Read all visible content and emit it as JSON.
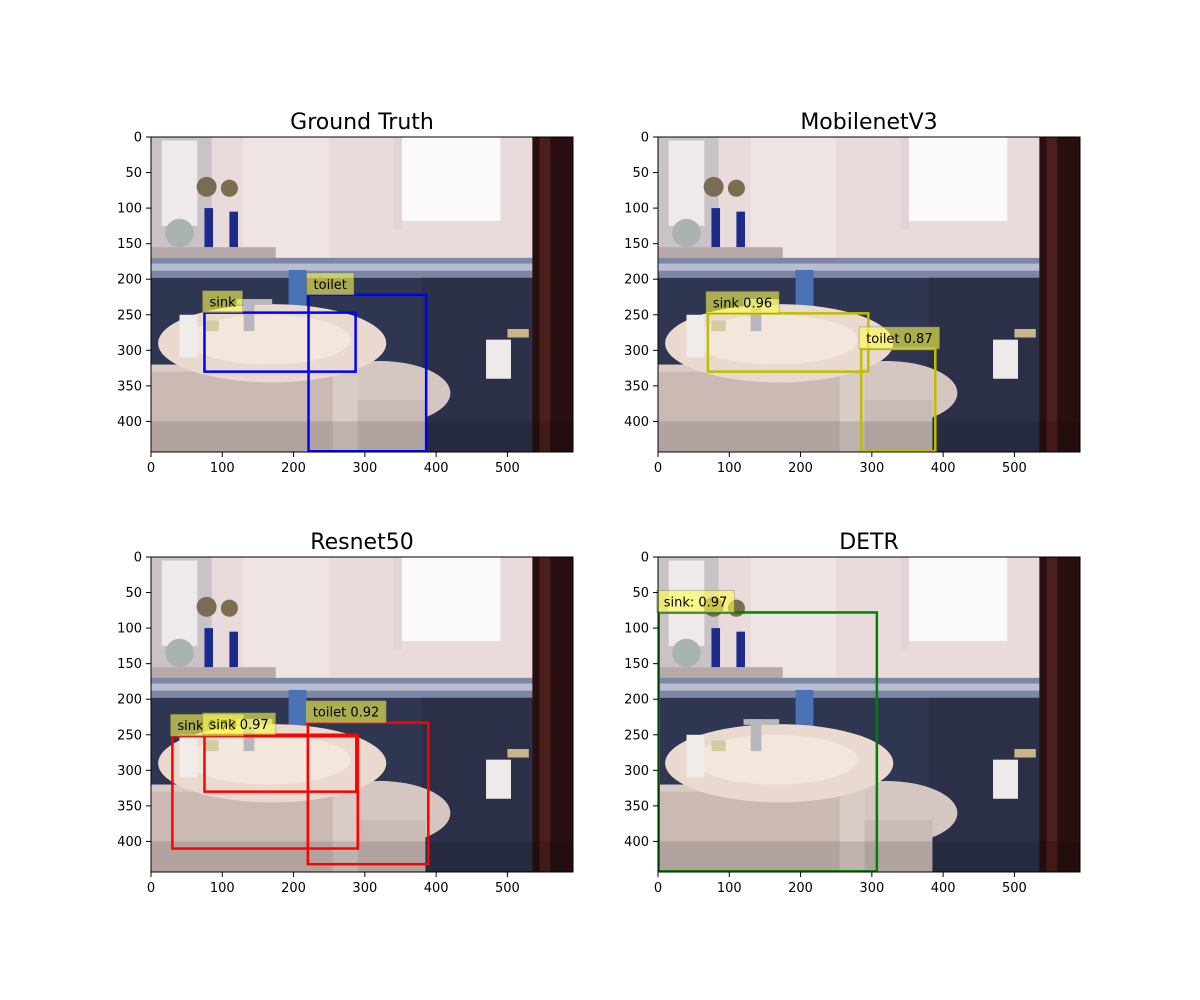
{
  "figure": {
    "image_extent": {
      "width": 592,
      "height": 443
    },
    "x_ticks": [
      0,
      100,
      200,
      300,
      400,
      500
    ],
    "y_ticks": [
      0,
      50,
      100,
      150,
      200,
      250,
      300,
      350,
      400
    ],
    "panels": [
      {
        "title": "Ground Truth",
        "box_color": "#0000ff",
        "boxes": [
          {
            "label": "sink",
            "x1": 75,
            "y1": 247,
            "x2": 287,
            "y2": 330
          },
          {
            "label": "toilet",
            "x1": 221,
            "y1": 222,
            "x2": 386,
            "y2": 442
          }
        ]
      },
      {
        "title": "MobilenetV3",
        "box_color": "#bfbf00",
        "boxes": [
          {
            "label": "sink 0.96",
            "x1": 70,
            "y1": 248,
            "x2": 295,
            "y2": 330
          },
          {
            "label": "toilet 0.87",
            "x1": 285,
            "y1": 298,
            "x2": 389,
            "y2": 442
          }
        ]
      },
      {
        "title": "Resnet50",
        "box_color": "#ff0000",
        "boxes": [
          {
            "label": "sink 0.73",
            "x1": 30,
            "y1": 252,
            "x2": 290,
            "y2": 410
          },
          {
            "label": "sink 0.97",
            "x1": 75,
            "y1": 250,
            "x2": 288,
            "y2": 330
          },
          {
            "label": "toilet 0.92",
            "x1": 220,
            "y1": 233,
            "x2": 389,
            "y2": 432
          }
        ]
      },
      {
        "title": "DETR",
        "box_color": "#008000",
        "boxes": [
          {
            "label": "sink: 0.97",
            "x1": 1,
            "y1": 78,
            "x2": 307,
            "y2": 442
          }
        ]
      }
    ]
  },
  "colors": {
    "label_background": "#ffff4d",
    "photo_wall": "#e8d8d8",
    "photo_tiles": "#2e3550",
    "photo_door": "#2a0f10",
    "photo_sink": "#ead9cf",
    "photo_window": "#fbf8f8"
  }
}
